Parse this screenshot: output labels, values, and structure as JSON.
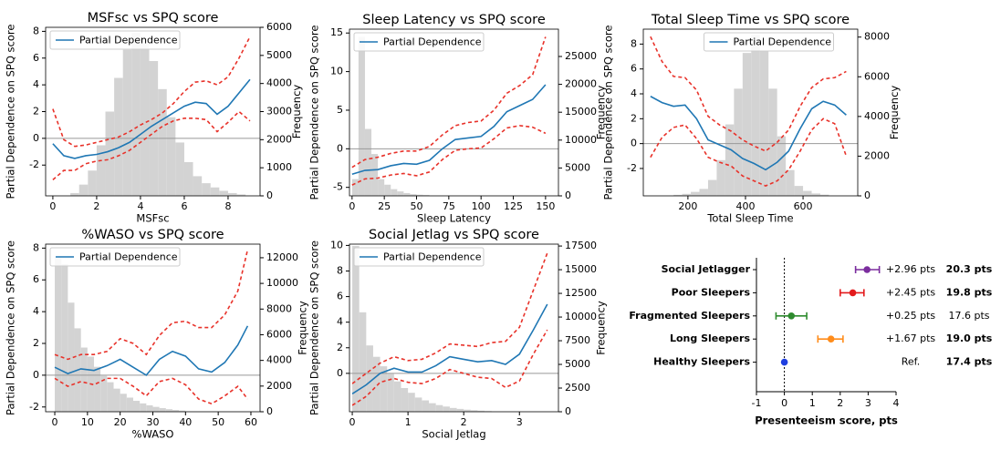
{
  "chart_data": [
    {
      "type": "line",
      "title": "MSFsc vs SPQ score",
      "xlabel": "MSFsc",
      "ylabel": "Partial Dependence on SPQ score",
      "y2label": "Frequency",
      "legend": "upper left",
      "xlim": [
        -0.33,
        9.46
      ],
      "xticks": [
        0,
        2,
        4,
        6,
        8
      ],
      "ylim": [
        -4.3,
        8.3
      ],
      "yticks": [
        -2,
        0,
        2,
        4,
        6,
        8
      ],
      "y2lim": [
        0,
        6000
      ],
      "y2ticks": [
        0,
        1000,
        2000,
        3000,
        4000,
        5000,
        6000
      ],
      "reference_line": 0,
      "x": [
        0,
        0.5,
        1,
        1.5,
        2,
        2.5,
        3,
        3.5,
        4,
        4.5,
        5,
        5.5,
        6,
        6.5,
        7,
        7.5,
        8,
        8.5,
        9
      ],
      "series": [
        {
          "name": "Partial Dependence",
          "color": "#1f77b4",
          "linestyle": "solid",
          "values": [
            -0.4,
            -1.3,
            -1.5,
            -1.3,
            -1.2,
            -1.0,
            -0.7,
            -0.3,
            0.3,
            0.9,
            1.4,
            1.9,
            2.4,
            2.7,
            2.6,
            1.8,
            2.4,
            3.4,
            4.4
          ]
        },
        {
          "color": "#e8322a",
          "linestyle": "dashed",
          "values": [
            2.2,
            -0.1,
            -0.6,
            -0.5,
            -0.3,
            -0.1,
            0.1,
            0.5,
            1.0,
            1.4,
            1.9,
            2.6,
            3.5,
            4.2,
            4.3,
            4.0,
            4.6,
            6.0,
            7.6
          ]
        },
        {
          "color": "#e8322a",
          "linestyle": "dashed",
          "values": [
            -3.1,
            -2.4,
            -2.4,
            -1.9,
            -1.7,
            -1.6,
            -1.3,
            -0.9,
            -0.3,
            0.3,
            0.9,
            1.3,
            1.5,
            1.5,
            1.4,
            0.5,
            1.2,
            2.0,
            1.3
          ]
        }
      ],
      "histogram": {
        "color": "#d3d3d3",
        "axis": "y2",
        "bins": [
          0.8,
          1.2,
          1.6,
          2.0,
          2.4,
          2.8,
          3.2,
          3.6,
          4.0,
          4.4,
          4.8,
          5.2,
          5.6,
          6.0,
          6.4,
          6.8,
          7.2,
          7.6,
          8.0,
          8.4,
          8.8
        ],
        "counts": [
          100,
          400,
          900,
          1800,
          3000,
          4200,
          5200,
          5800,
          5600,
          4800,
          3800,
          2800,
          1900,
          1200,
          700,
          450,
          300,
          180,
          100,
          50
        ]
      }
    },
    {
      "type": "line",
      "title": "Sleep Latency vs SPQ score",
      "xlabel": "Sleep Latency",
      "ylabel": "Partial Dependence on SPQ score",
      "y2label": "Frequency",
      "legend": "upper left",
      "xlim": [
        -2,
        160
      ],
      "xticks": [
        0,
        25,
        50,
        75,
        100,
        125,
        150
      ],
      "ylim": [
        -6.1,
        15.5
      ],
      "yticks": [
        -5,
        0,
        5,
        10,
        15
      ],
      "y2lim": [
        0,
        29900
      ],
      "y2ticks": [
        0,
        5000,
        10000,
        15000,
        20000,
        25000
      ],
      "reference_line": 0,
      "x": [
        0,
        10,
        20,
        30,
        40,
        50,
        60,
        70,
        80,
        90,
        100,
        110,
        120,
        130,
        140,
        150
      ],
      "series": [
        {
          "name": "Partial Dependence",
          "color": "#1f77b4",
          "linestyle": "solid",
          "values": [
            -3.3,
            -2.8,
            -2.7,
            -2.2,
            -1.9,
            -2.0,
            -1.5,
            0.0,
            1.2,
            1.4,
            1.6,
            2.9,
            4.8,
            5.6,
            6.4,
            8.3
          ]
        },
        {
          "color": "#e8322a",
          "linestyle": "dashed",
          "values": [
            -2.4,
            -1.4,
            -1.1,
            -0.6,
            -0.3,
            -0.3,
            0.3,
            1.8,
            3.0,
            3.4,
            3.6,
            5.0,
            7.2,
            8.2,
            9.6,
            14.5
          ]
        },
        {
          "color": "#e8322a",
          "linestyle": "dashed",
          "values": [
            -4.7,
            -3.9,
            -3.8,
            -3.4,
            -3.2,
            -3.5,
            -3.0,
            -1.4,
            -0.2,
            0.0,
            0.1,
            1.3,
            2.7,
            3.0,
            2.8,
            2.0
          ]
        }
      ],
      "histogram": {
        "color": "#d3d3d3",
        "axis": "y2",
        "bins": [
          0,
          5,
          10,
          15,
          20,
          25,
          30,
          35,
          40,
          45,
          50,
          55,
          60
        ],
        "counts": [
          3000,
          28500,
          12000,
          7500,
          3000,
          2000,
          1200,
          800,
          500,
          300,
          200,
          150
        ]
      }
    },
    {
      "type": "line",
      "title": "Total Sleep Time vs SPQ score",
      "xlabel": "Total Sleep Time",
      "ylabel": "Partial Dependence on SPQ score",
      "y2label": "Frequency",
      "legend": "upper center",
      "xlim": [
        45,
        790
      ],
      "xticks": [
        200,
        400,
        600
      ],
      "ylim": [
        -4.2,
        9.2
      ],
      "yticks": [
        -2,
        0,
        2,
        4,
        6,
        8
      ],
      "y2lim": [
        0,
        8400
      ],
      "y2ticks": [
        0,
        2000,
        4000,
        6000,
        8000
      ],
      "reference_line": 0,
      "x": [
        70,
        110,
        150,
        190,
        230,
        270,
        310,
        350,
        390,
        430,
        470,
        510,
        550,
        590,
        630,
        670,
        710,
        750
      ],
      "series": [
        {
          "name": "Partial Dependence",
          "color": "#1f77b4",
          "linestyle": "solid",
          "values": [
            3.8,
            3.3,
            3.0,
            3.1,
            2.0,
            0.3,
            -0.1,
            -0.5,
            -1.2,
            -1.6,
            -2.1,
            -1.5,
            -0.6,
            1.2,
            2.8,
            3.4,
            3.1,
            2.3
          ]
        },
        {
          "color": "#e8322a",
          "linestyle": "dashed",
          "values": [
            8.6,
            6.6,
            5.4,
            5.3,
            4.3,
            2.2,
            1.5,
            1.0,
            0.3,
            -0.2,
            -0.6,
            0.1,
            1.1,
            3.0,
            4.5,
            5.2,
            5.3,
            5.8
          ]
        },
        {
          "color": "#e8322a",
          "linestyle": "dashed",
          "values": [
            -1.1,
            0.5,
            1.3,
            1.5,
            0.4,
            -1.1,
            -1.5,
            -1.8,
            -2.6,
            -3.0,
            -3.4,
            -3.0,
            -2.1,
            -0.6,
            1.1,
            2.0,
            1.6,
            -1.0
          ]
        }
      ],
      "histogram": {
        "color": "#d3d3d3",
        "axis": "y2",
        "bins": [
          150,
          180,
          210,
          240,
          270,
          300,
          330,
          360,
          390,
          420,
          450,
          480,
          510,
          540,
          570,
          600,
          630,
          660,
          690
        ],
        "counts": [
          50,
          100,
          200,
          350,
          800,
          1800,
          3600,
          5400,
          7200,
          8100,
          7300,
          5400,
          3000,
          1300,
          500,
          250,
          120,
          60
        ]
      }
    },
    {
      "type": "line",
      "title": "%WASO vs SPQ score",
      "xlabel": "%WASO",
      "ylabel": "Partial Dependence on SPQ score",
      "y2label": "Frequency",
      "legend": "upper left",
      "xlim": [
        -2.8,
        62.8
      ],
      "xticks": [
        0,
        10,
        20,
        30,
        40,
        50,
        60
      ],
      "ylim": [
        -2.3,
        8.25
      ],
      "yticks": [
        -2,
        0,
        2,
        4,
        6,
        8
      ],
      "y2lim": [
        0,
        13060
      ],
      "y2ticks": [
        0,
        2000,
        4000,
        6000,
        8000,
        10000,
        12000
      ],
      "reference_line": 0,
      "x": [
        0,
        4,
        8,
        12,
        16,
        20,
        24,
        28,
        32,
        36,
        40,
        44,
        48,
        52,
        56,
        59
      ],
      "series": [
        {
          "name": "Partial Dependence",
          "color": "#1f77b4",
          "linestyle": "solid",
          "values": [
            0.5,
            0.1,
            0.4,
            0.3,
            0.6,
            1.0,
            0.5,
            0.0,
            1.0,
            1.5,
            1.2,
            0.4,
            0.2,
            0.8,
            1.9,
            3.1
          ]
        },
        {
          "color": "#e8322a",
          "linestyle": "dashed",
          "values": [
            1.3,
            1.0,
            1.3,
            1.3,
            1.5,
            2.3,
            2.0,
            1.3,
            2.5,
            3.3,
            3.4,
            3.0,
            3.0,
            3.8,
            5.3,
            7.9
          ]
        },
        {
          "color": "#e8322a",
          "linestyle": "dashed",
          "values": [
            -0.2,
            -0.7,
            -0.4,
            -0.6,
            -0.2,
            -0.2,
            -0.7,
            -1.3,
            -0.4,
            -0.2,
            -0.6,
            -1.5,
            -1.8,
            -1.3,
            -0.7,
            -1.5
          ]
        }
      ],
      "histogram": {
        "color": "#d3d3d3",
        "axis": "y2",
        "bins": [
          0,
          2,
          4,
          6,
          8,
          10,
          12,
          14,
          16,
          18,
          20,
          22,
          24,
          26,
          28,
          30,
          32,
          34,
          36,
          38,
          40
        ],
        "counts": [
          12000,
          11500,
          8500,
          6500,
          5000,
          4300,
          3500,
          2800,
          2300,
          1800,
          1400,
          1100,
          850,
          650,
          500,
          380,
          280,
          200,
          140,
          90
        ]
      }
    },
    {
      "type": "line",
      "title": "Social Jetlag vs SPQ score",
      "xlabel": "Social Jetlag",
      "ylabel": "Partial Dependence on SPQ score",
      "y2label": "Frequency",
      "legend": "upper left",
      "xlim": [
        -0.05,
        3.7
      ],
      "xticks": [
        0,
        1,
        2,
        3
      ],
      "ylim": [
        -3.0,
        10.1
      ],
      "yticks": [
        0,
        2,
        4,
        6,
        8,
        10
      ],
      "y2lim": [
        0,
        17700
      ],
      "y2ticks": [
        0,
        2500,
        5000,
        7500,
        10000,
        12500,
        15000,
        17500
      ],
      "reference_line": 0,
      "x": [
        0,
        0.25,
        0.5,
        0.75,
        1,
        1.25,
        1.5,
        1.75,
        2,
        2.25,
        2.5,
        2.75,
        3,
        3.25,
        3.5
      ],
      "series": [
        {
          "name": "Partial Dependence",
          "color": "#1f77b4",
          "linestyle": "solid",
          "values": [
            -1.6,
            -0.9,
            0.0,
            0.4,
            0.1,
            0.1,
            0.6,
            1.3,
            1.1,
            0.9,
            1.0,
            0.7,
            1.5,
            3.4,
            5.4
          ]
        },
        {
          "color": "#e8322a",
          "linestyle": "dashed",
          "values": [
            -0.8,
            0.0,
            0.8,
            1.3,
            1.0,
            1.1,
            1.6,
            2.3,
            2.2,
            2.1,
            2.4,
            2.5,
            3.6,
            6.5,
            9.4
          ]
        },
        {
          "color": "#e8322a",
          "linestyle": "dashed",
          "values": [
            -2.5,
            -1.8,
            -0.7,
            -0.4,
            -0.7,
            -0.8,
            -0.4,
            0.3,
            0.0,
            -0.3,
            -0.4,
            -1.1,
            -0.6,
            1.5,
            3.4
          ]
        }
      ],
      "histogram": {
        "color": "#d3d3d3",
        "axis": "y2",
        "bins": [
          0,
          0.125,
          0.25,
          0.375,
          0.5,
          0.625,
          0.75,
          0.875,
          1.0,
          1.125,
          1.25,
          1.375,
          1.5,
          1.625,
          1.75,
          1.875,
          2.0,
          2.125,
          2.25,
          2.375,
          2.5
        ],
        "counts": [
          17500,
          10500,
          7000,
          5800,
          4800,
          4000,
          3200,
          2500,
          2000,
          1500,
          1200,
          900,
          700,
          550,
          400,
          300,
          220,
          160,
          110,
          70
        ]
      }
    },
    {
      "type": "forest",
      "xlabel": "Presenteeism score, pts",
      "xlim": [
        -1,
        4
      ],
      "xticks": [
        -1,
        0,
        1,
        2,
        3,
        4
      ],
      "categories": [
        "Social Jetlagger",
        "Poor Sleepers",
        "Fragmented Sleepers",
        "Long Sleepers",
        "Healthy Sleepers"
      ],
      "values": [
        2.96,
        2.45,
        0.25,
        1.67,
        0
      ],
      "value_labels": [
        "+2.96 pts",
        "+2.45 pts",
        "+0.25 pts",
        "+1.67 pts",
        "Ref."
      ],
      "ci_low": [
        2.55,
        2.0,
        -0.3,
        1.2,
        null
      ],
      "ci_high": [
        3.4,
        2.85,
        0.8,
        2.1,
        null
      ],
      "colors": [
        "#7b2d9e",
        "#e31a1c",
        "#2e8b2e",
        "#ff8c1a",
        "#1f3fe0"
      ],
      "scores": [
        20.3,
        19.8,
        17.6,
        19.0,
        17.4
      ],
      "score_labels": [
        "20.3 pts",
        "19.8 pts",
        "17.6 pts",
        "19.0 pts",
        "17.4 pts"
      ],
      "score_colors": [
        "#e8322a",
        "#e8322a",
        "#000000",
        "#e8322a",
        "#000000"
      ],
      "score_bold": [
        true,
        true,
        false,
        true,
        true
      ]
    }
  ]
}
